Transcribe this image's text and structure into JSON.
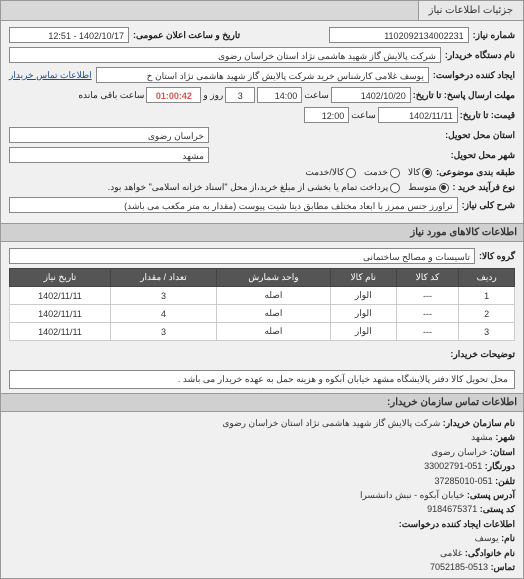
{
  "tab": {
    "title": "جزئیات اطلاعات نیاز"
  },
  "header": {
    "request_no_label": "شماره نیاز:",
    "request_no": "1102092134002231",
    "announce_label": "تاریخ و ساعت اعلان عمومی:",
    "announce_value": "1402/10/17 - 12:51"
  },
  "buyer": {
    "device_label": "نام دستگاه خریدار:",
    "device_value": "شرکت پالایش گاز شهید هاشمی نژاد   استان خراسان رضوی",
    "creator_label": "ایجاد کننده درخواست:",
    "creator_value": "یوسف غلامی کارشناس خرید شرکت پالایش گاز شهید هاشمی نژاد   استان خ",
    "contact_link": "اطلاعات تماس خریدار"
  },
  "deadlines": {
    "send_label": "مهلت ارسال پاسخ: تا تاریخ:",
    "send_date": "1402/10/20",
    "send_time_label": "ساعت",
    "send_time": "14:00",
    "remain_days": "3",
    "remain_days_label": "روز و",
    "remain_time": "01:00:42",
    "remain_suffix": "ساعت باقی مانده",
    "price_label": "قیمت: تا تاریخ:",
    "price_date": "1402/11/11",
    "price_time_label": "ساعت",
    "price_time": "12:00"
  },
  "location": {
    "province_label": "استان محل تحویل:",
    "province": "خراسان رضوی",
    "city_label": "شهر محل تحویل:",
    "city": "مشهد"
  },
  "classification": {
    "label": "طبقه بندی موضوعی:",
    "options": [
      "کالا",
      "خدمت",
      "کالا/خدمت"
    ],
    "selected": 0
  },
  "process": {
    "label": "نوع فرآیند خرید :",
    "options": [
      "متوسط",
      "پرداخت تمام یا بخشی از مبلغ خرید،از محل \"اسناد خزانه اسلامی\" خواهد بود."
    ],
    "selected": 0
  },
  "need": {
    "title_label": "شرح کلی نیاز:",
    "title_value": "تراورز جنس ممرز با ابعاد مختلف مطابق دیتا شیت پیوست (مقدار به متر مکعب می باشد)"
  },
  "goods": {
    "section_title": "اطلاعات کالاهای مورد نیاز",
    "group_label": "گروه کالا:",
    "group_value": "تاسیسات و مصالح ساختمانی",
    "columns": [
      "ردیف",
      "کد کالا",
      "نام کالا",
      "واحد شمارش",
      "تعداد / مقدار",
      "تاریخ نیاز"
    ],
    "rows": [
      [
        "1",
        "---",
        "الوار",
        "اصله",
        "3",
        "1402/11/11"
      ],
      [
        "2",
        "---",
        "الوار",
        "اصله",
        "4",
        "1402/11/11"
      ],
      [
        "3",
        "---",
        "الوار",
        "اصله",
        "3",
        "1402/11/11"
      ]
    ]
  },
  "buyer_notes": {
    "label": "توضیحات خریدار:",
    "value": "محل تحویل کالا دفتر پالایشگاه مشهد خیابان آبکوه و هزینه حمل به عهده خریدار می باشد ."
  },
  "contact": {
    "section_title": "اطلاعات تماس سازمان خریدار:",
    "org_label": "نام سازمان خریدار:",
    "org_value": "شرکت پالایش گاز شهید هاشمی نژاد استان خراسان رضوی",
    "city_label": "شهر:",
    "city_value": "مشهد",
    "province_label": "استان:",
    "province_value": "خراسان رضوی",
    "fax_label": "دورنگار:",
    "fax_value": "051-33002791",
    "phone_label": "تلفن:",
    "phone_value": "051-37285010",
    "address_label": "آدرس پستی:",
    "address_value": "خیابان آبکوه - نبش دانشسرا",
    "postcode_label": "کد پستی:",
    "postcode_value": "9184675371",
    "requester_title": "اطلاعات ایجاد کننده درخواست:",
    "name_label": "نام:",
    "name_value": "یوسف",
    "lastname_label": "نام خانوادگی:",
    "lastname_value": "غلامی",
    "contact_phone_label": "تماس:",
    "contact_phone_value": "0513-7052185"
  }
}
